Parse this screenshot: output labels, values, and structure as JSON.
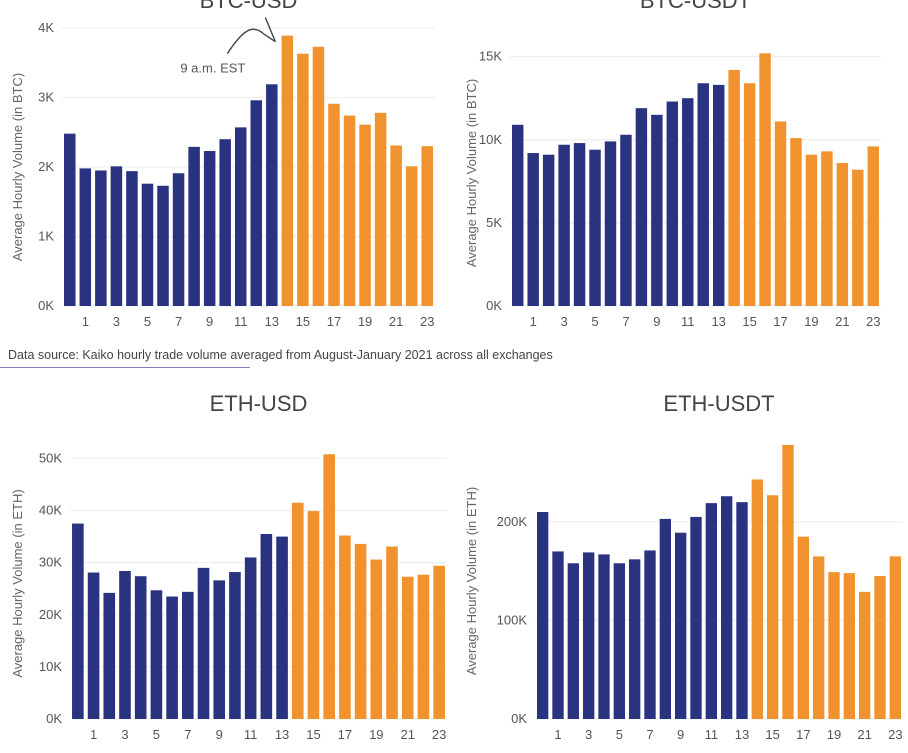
{
  "colors": {
    "before": "#2a3380",
    "after": "#f0932f",
    "grid": "#ececec"
  },
  "source_note": "Data source: Kaiko hourly trade volume averaged from August-January 2021 across all exchanges",
  "chart_data": [
    {
      "type": "bar",
      "title": "BTC-USD",
      "ylabel": "Average Hourly Volume (in BTC)",
      "ylim": [
        0,
        4000
      ],
      "yticks": [
        0,
        1000,
        2000,
        3000,
        4000
      ],
      "ytick_labels": [
        "0K",
        "1K",
        "2K",
        "3K",
        "4K"
      ],
      "x": [
        0,
        1,
        2,
        3,
        4,
        5,
        6,
        7,
        8,
        9,
        10,
        11,
        12,
        13,
        14,
        15,
        16,
        17,
        18,
        19,
        20,
        21,
        22,
        23
      ],
      "xtick_labels": [
        "1",
        "3",
        "5",
        "7",
        "9",
        "11",
        "13",
        "15",
        "17",
        "19",
        "21",
        "23"
      ],
      "values": [
        2480,
        1980,
        1950,
        2010,
        1940,
        1760,
        1730,
        1910,
        2290,
        2230,
        2400,
        2570,
        2960,
        3190,
        3890,
        3630,
        3730,
        2910,
        2740,
        2610,
        2780,
        2310,
        2010,
        2300
      ],
      "highlight_start": 14,
      "annotation": {
        "text": "9 a.m. EST",
        "x": 14
      }
    },
    {
      "type": "bar",
      "title": "BTC-USDT",
      "ylabel": "Average Hourly Volume (in BTC)",
      "ylim": [
        0,
        16000
      ],
      "yticks": [
        0,
        5000,
        10000,
        15000
      ],
      "ytick_labels": [
        "0K",
        "5K",
        "10K",
        "15K"
      ],
      "x": [
        0,
        1,
        2,
        3,
        4,
        5,
        6,
        7,
        8,
        9,
        10,
        11,
        12,
        13,
        14,
        15,
        16,
        17,
        18,
        19,
        20,
        21,
        22,
        23
      ],
      "xtick_labels": [
        "1",
        "3",
        "5",
        "7",
        "9",
        "11",
        "13",
        "15",
        "17",
        "19",
        "21",
        "23"
      ],
      "values": [
        10900,
        9200,
        9100,
        9700,
        9800,
        9400,
        9900,
        10300,
        11900,
        11500,
        12300,
        12500,
        13400,
        13300,
        14200,
        13400,
        15200,
        11100,
        10100,
        9100,
        9300,
        8600,
        8200,
        9600
      ],
      "highlight_start": 14
    },
    {
      "type": "bar",
      "title": "ETH-USD",
      "ylabel": "Average Hourly Volume (in ETH)",
      "ylim": [
        0,
        52000
      ],
      "yticks": [
        0,
        10000,
        20000,
        30000,
        40000,
        50000
      ],
      "ytick_labels": [
        "0K",
        "10K",
        "20K",
        "30K",
        "40K",
        "50K"
      ],
      "x": [
        0,
        1,
        2,
        3,
        4,
        5,
        6,
        7,
        8,
        9,
        10,
        11,
        12,
        13,
        14,
        15,
        16,
        17,
        18,
        19,
        20,
        21,
        22,
        23
      ],
      "xtick_labels": [
        "1",
        "3",
        "5",
        "7",
        "9",
        "11",
        "13",
        "15",
        "17",
        "19",
        "21",
        "23"
      ],
      "values": [
        37500,
        28100,
        24200,
        28400,
        27400,
        24700,
        23500,
        24400,
        29000,
        26600,
        28200,
        31000,
        35500,
        35000,
        41500,
        39900,
        50800,
        35200,
        33600,
        30600,
        33100,
        27300,
        27700,
        29400
      ],
      "highlight_start": 14
    },
    {
      "type": "bar",
      "title": "ETH-USDT",
      "ylabel": "Average Hourly Volume (in ETH)",
      "ylim": [
        0,
        280000
      ],
      "yticks": [
        0,
        100000,
        200000
      ],
      "ytick_labels": [
        "0K",
        "100K",
        "200K"
      ],
      "x": [
        0,
        1,
        2,
        3,
        4,
        5,
        6,
        7,
        8,
        9,
        10,
        11,
        12,
        13,
        14,
        15,
        16,
        17,
        18,
        19,
        20,
        21,
        22,
        23
      ],
      "xtick_labels": [
        "1",
        "3",
        "5",
        "7",
        "9",
        "11",
        "13",
        "15",
        "17",
        "19",
        "21",
        "23"
      ],
      "values": [
        210000,
        170000,
        158000,
        169000,
        167000,
        158000,
        162000,
        171000,
        203000,
        189000,
        205000,
        219000,
        226000,
        220000,
        243000,
        227000,
        278000,
        185000,
        165000,
        149000,
        148000,
        129000,
        145000,
        165000
      ],
      "highlight_start": 14
    }
  ]
}
